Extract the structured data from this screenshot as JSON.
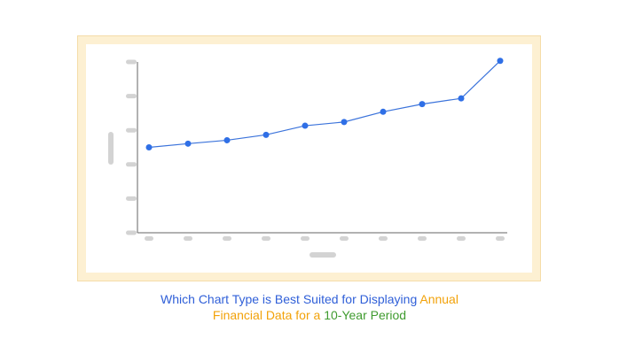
{
  "chart_data": {
    "type": "line",
    "title": "",
    "xlabel": "",
    "ylabel": "",
    "x": [
      1,
      2,
      3,
      4,
      5,
      6,
      7,
      8,
      9,
      10
    ],
    "values": [
      3.0,
      3.13,
      3.25,
      3.44,
      3.76,
      3.89,
      4.25,
      4.52,
      4.72,
      6.04
    ],
    "ylim": [
      0,
      6
    ],
    "grid": false,
    "legend": "none",
    "colors": {
      "line": "#3b73db",
      "marker": "#2f6fe6",
      "axis": "#666666",
      "placeholder": "#d3d3d3"
    }
  },
  "caption": {
    "part1": "Which Chart Type is Best Suited for Displaying ",
    "part2": "Annual",
    "part3": "Financial Data for a ",
    "part4": "10-Year Period",
    "colors": {
      "blue": "#2f5fd8",
      "orange": "#f2a20a",
      "green": "#3f9b2f"
    }
  },
  "frame": {
    "border_color": "#f5dca8",
    "fill_color": "#fdf0d2"
  }
}
